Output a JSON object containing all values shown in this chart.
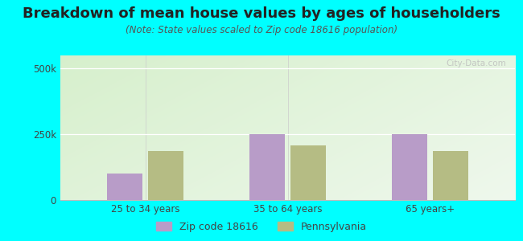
{
  "title": "Breakdown of mean house values by ages of householders",
  "subtitle": "(Note: State values scaled to Zip code 18616 population)",
  "categories": [
    "25 to 34 years",
    "35 to 64 years",
    "65 years+"
  ],
  "zip_values": [
    100000,
    252000,
    252000
  ],
  "state_values": [
    185000,
    207000,
    185000
  ],
  "ylim": [
    0,
    550000
  ],
  "ytick_labels": [
    "0",
    "250k",
    "500k"
  ],
  "ytick_vals": [
    0,
    250000,
    500000
  ],
  "zip_color": "#b89cc8",
  "state_color": "#b5bc84",
  "outer_bg": "#00ffff",
  "title_fontsize": 13,
  "subtitle_fontsize": 8.5,
  "legend_zip_label": "Zip code 18616",
  "legend_state_label": "Pennsylvania",
  "watermark": "City-Data.com",
  "bar_width": 0.25,
  "bar_gap": 0.04
}
